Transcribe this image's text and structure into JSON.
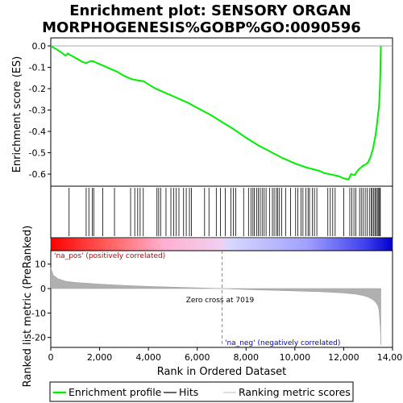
{
  "chart_data": {
    "type": "line",
    "title_lines": [
      "Enrichment plot: SENSORY ORGAN",
      "MORPHOGENESIS%GOBP%GO:0090596"
    ],
    "ylabel_top": "Enrichment score (ES)",
    "ylabel_bottom": "Ranked list metric (PreRanked)",
    "xlabel": "Rank in Ordered Dataset",
    "xlim": [
      0,
      14000
    ],
    "x_ticks": [
      0,
      2000,
      4000,
      6000,
      8000,
      10000,
      12000,
      14000
    ],
    "x_tick_labels": [
      "0",
      "2,000",
      "4,000",
      "6,000",
      "8,000",
      "10,000",
      "12,000",
      "14,000"
    ],
    "es_ylim": [
      -0.66,
      0.02
    ],
    "es_ticks": [
      0.0,
      -0.1,
      -0.2,
      -0.3,
      -0.4,
      -0.5,
      -0.6
    ],
    "es_tick_labels": [
      "0.0",
      "-0.1",
      "-0.2",
      "-0.3",
      "-0.4",
      "-0.5",
      "-0.6"
    ],
    "metric_ylim": [
      -24,
      16
    ],
    "metric_ticks": [
      10,
      0,
      -10,
      -20
    ],
    "metric_tick_labels": [
      "10",
      "0",
      "-10",
      "-20"
    ],
    "series": [
      {
        "name": "Enrichment profile",
        "color": "#00ee00",
        "x": [
          0,
          300,
          600,
          700,
          760,
          1000,
          1300,
          1450,
          1550,
          1650,
          1750,
          1900,
          2100,
          2400,
          2700,
          3000,
          3300,
          3500,
          3800,
          4000,
          4300,
          4400,
          4500,
          4800,
          5200,
          5600,
          6000,
          6500,
          7000,
          7500,
          8000,
          8500,
          9000,
          9500,
          10000,
          10500,
          11000,
          11200,
          11400,
          11600,
          11800,
          12000,
          12200,
          12300,
          12450,
          12500,
          12600,
          12700,
          12800,
          12900,
          13000,
          13100,
          13150,
          13200,
          13250,
          13300,
          13350,
          13400,
          13450,
          13480,
          13500,
          13520
        ],
        "y": [
          0.0,
          -0.02,
          -0.045,
          -0.035,
          -0.04,
          -0.055,
          -0.075,
          -0.08,
          -0.075,
          -0.07,
          -0.072,
          -0.08,
          -0.09,
          -0.105,
          -0.12,
          -0.14,
          -0.155,
          -0.16,
          -0.165,
          -0.18,
          -0.2,
          -0.205,
          -0.21,
          -0.225,
          -0.245,
          -0.265,
          -0.29,
          -0.32,
          -0.355,
          -0.39,
          -0.43,
          -0.465,
          -0.495,
          -0.525,
          -0.55,
          -0.57,
          -0.585,
          -0.595,
          -0.6,
          -0.605,
          -0.61,
          -0.62,
          -0.625,
          -0.6,
          -0.605,
          -0.595,
          -0.58,
          -0.57,
          -0.56,
          -0.555,
          -0.545,
          -0.52,
          -0.5,
          -0.48,
          -0.45,
          -0.42,
          -0.38,
          -0.33,
          -0.28,
          -0.2,
          -0.12,
          0.0
        ]
      }
    ],
    "hits_x": [
      750,
      1450,
      1560,
      1700,
      1760,
      2130,
      2610,
      3270,
      3440,
      3560,
      3660,
      3790,
      4350,
      4420,
      4500,
      4720,
      4920,
      5040,
      5140,
      5250,
      5440,
      5550,
      5680,
      5760,
      6300,
      6480,
      6780,
      6950,
      7150,
      7380,
      7480,
      7580,
      7900,
      8100,
      8200,
      8280,
      8340,
      8430,
      8500,
      8580,
      8660,
      8740,
      8820,
      8960,
      9080,
      9150,
      9240,
      9300,
      9370,
      9460,
      9620,
      9820,
      10030,
      10120,
      10250,
      10330,
      10450,
      10540,
      10600,
      10720,
      10800,
      10900,
      11350,
      11450,
      11550,
      11650,
      12000,
      12250,
      12330,
      12420,
      12500,
      12650,
      12720,
      12800,
      12880,
      12960,
      13050,
      13120,
      13170,
      13230,
      13280,
      13330,
      13380,
      13430,
      13470,
      13500
    ],
    "metric_curve": {
      "x": [
        0,
        100,
        300,
        600,
        1000,
        2000,
        3000,
        4000,
        5000,
        6000,
        7019,
        8000,
        9000,
        10000,
        11000,
        12000,
        12500,
        12800,
        13000,
        13200,
        13300,
        13400,
        13450,
        13500,
        13520
      ],
      "y": [
        8.5,
        5.5,
        4.0,
        3.0,
        2.5,
        1.8,
        1.3,
        0.9,
        0.6,
        0.3,
        0.0,
        -0.4,
        -0.7,
        -1.0,
        -1.3,
        -1.8,
        -2.3,
        -2.9,
        -3.5,
        -4.6,
        -5.5,
        -7.0,
        -9.0,
        -16.0,
        -23.0
      ]
    },
    "zero_cross_label": "Zero cross at 7019",
    "zero_cross_x": 7019,
    "na_pos_label": "'na_pos' (positively correlated)",
    "na_neg_label": "'na_neg' (negatively correlated)",
    "colors": {
      "es_line": "#00ee00",
      "hits": "#000000",
      "metric_fill": "#b0b0b0",
      "na_pos": "#cc0000",
      "na_neg": "#0000cc",
      "zero_line": "#aaaaaa"
    },
    "legend": [
      {
        "label": "Enrichment profile",
        "kind": "line",
        "color": "#00ee00"
      },
      {
        "label": "Hits",
        "kind": "line",
        "color": "#000000"
      },
      {
        "label": "Ranking metric scores",
        "kind": "line",
        "color": "#c8c8c8"
      }
    ]
  }
}
